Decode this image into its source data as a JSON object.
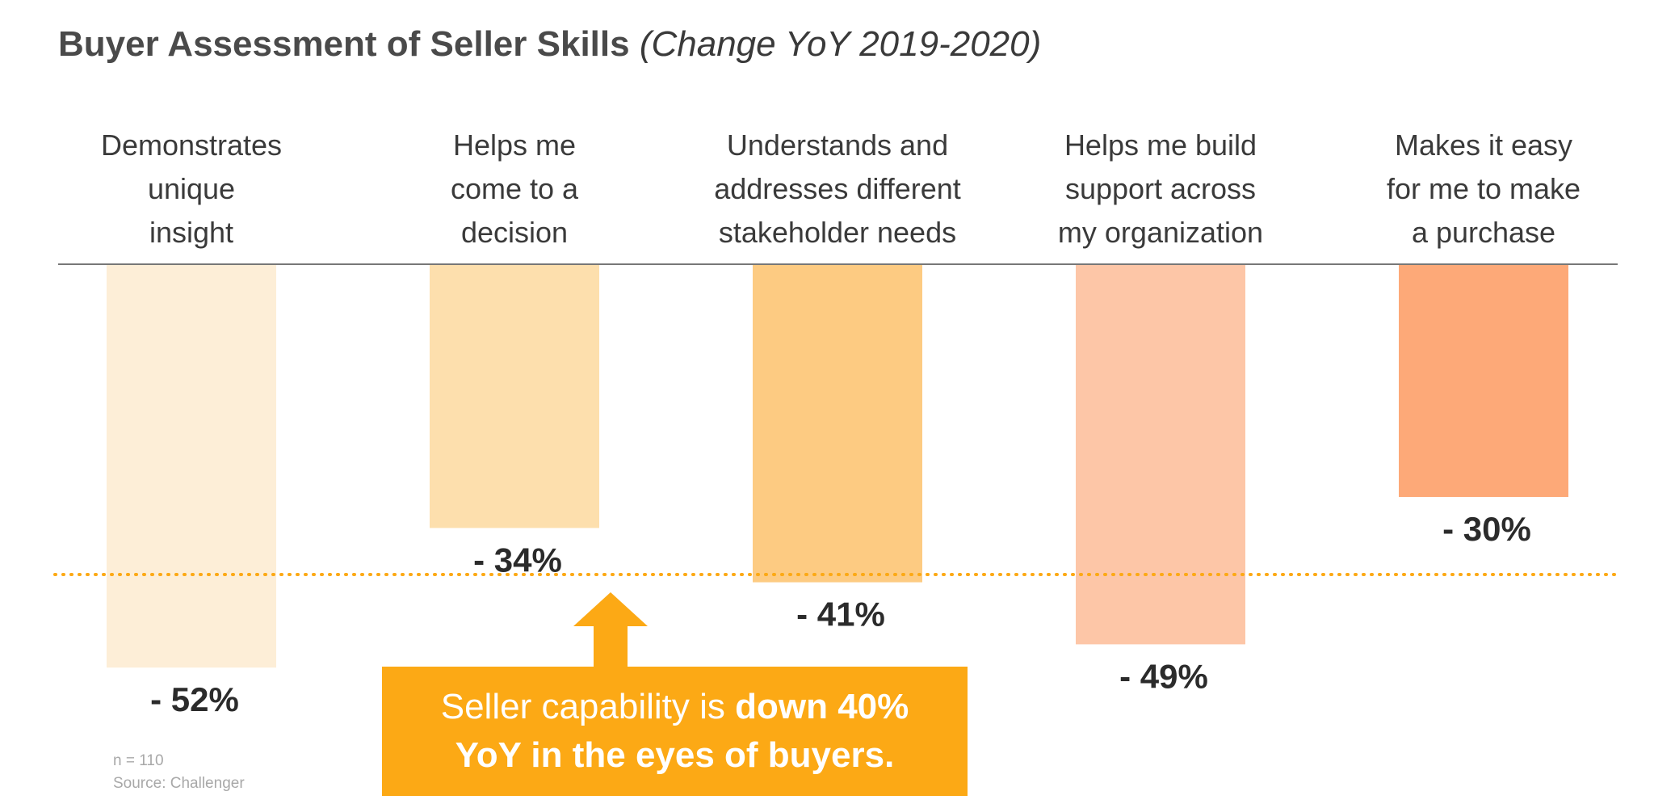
{
  "title": {
    "main": "Buyer Assessment of Seller Skills",
    "sub": "(Change YoY 2019-2020)"
  },
  "chart_data": {
    "type": "bar",
    "categories": [
      [
        "Demonstrates",
        "unique",
        "insight"
      ],
      [
        "Helps me",
        "come to a",
        "decision"
      ],
      [
        "Understands and",
        "addresses different",
        "stakeholder needs"
      ],
      [
        "Helps me build",
        "support across",
        "my organization"
      ],
      [
        "Makes it easy",
        "for me to make",
        "a purchase"
      ]
    ],
    "values": [
      -52,
      -34,
      -41,
      -49,
      -30
    ],
    "value_labels": [
      "- 52%",
      "- 34%",
      "- 41%",
      "- 49%",
      "- 30%"
    ],
    "colors": [
      "#fdeed7",
      "#fddfad",
      "#fdcb82",
      "#fdc6a7",
      "#fda978"
    ],
    "reference_line": {
      "value": -40,
      "color": "#fca915",
      "style": "dotted"
    },
    "ylim": [
      -52,
      0
    ],
    "grid": false
  },
  "callout": {
    "text_regular": "Seller capability is ",
    "text_bold_1": "down 40%",
    "text_bold_2": "YoY in the eyes of buyers.",
    "color": "#fca915"
  },
  "footnote": {
    "n": "n = 110",
    "source": "Source: Challenger"
  }
}
